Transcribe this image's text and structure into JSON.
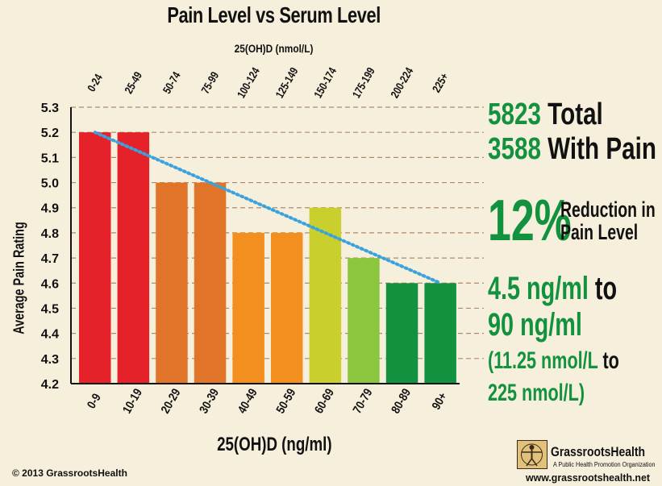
{
  "chart_data": {
    "type": "bar",
    "title": "Pain Level vs Serum Level",
    "top_axis_label": "25(OH)D (nmol/L)",
    "top_categories": [
      "0-24",
      "25-49",
      "50-74",
      "75-99",
      "100-124",
      "125-149",
      "150-174",
      "175-199",
      "200-224",
      "225+"
    ],
    "xlabel": "25(OH)D (ng/ml)",
    "ylabel": "Average Pain Rating",
    "categories": [
      "0-9",
      "10-19",
      "20-29",
      "30-39",
      "40-49",
      "50-59",
      "60-69",
      "70-79",
      "80-89",
      "90+"
    ],
    "values": [
      5.2,
      5.2,
      5.0,
      5.0,
      4.8,
      4.8,
      4.9,
      4.7,
      4.6,
      4.6
    ],
    "bar_colors": [
      "#e5212a",
      "#e5212a",
      "#e0752a",
      "#e0752a",
      "#f28f1f",
      "#f28f1f",
      "#c9cf2d",
      "#8cc63f",
      "#12923f",
      "#12923f"
    ],
    "ylim": [
      4.2,
      5.3
    ],
    "yticks": [
      "4.2",
      "4.3",
      "4.4",
      "4.5",
      "4.6",
      "4.7",
      "4.8",
      "4.9",
      "5.0",
      "5.1",
      "5.2",
      "5.3"
    ],
    "grid": true,
    "trendline": {
      "from_value": 5.2,
      "to_value": 4.6,
      "color": "#3aa2dc",
      "style": "dotted"
    }
  },
  "stats": {
    "total_number": "5823",
    "total_label": "Total",
    "pain_number": "3588",
    "pain_label": "With Pain",
    "reduction_number": "12",
    "reduction_symbol": "%",
    "reduction_line1": "Reduction in",
    "reduction_line2": "Pain Level",
    "range_from": "4.5 ng/ml",
    "range_to_word": "to",
    "range_to": "90 ng/ml",
    "range_nmol_from": "(11.25 nmol/L",
    "range_nmol_to_word": "to",
    "range_nmol_to": "225 nmol/L)"
  },
  "footer": {
    "copyright": "© 2013 GrassrootsHealth",
    "brand_name": "GrassrootsHealth",
    "brand_tagline": "A Public Health Promotion Organization",
    "website": "www.grassrootshealth.net"
  },
  "colors": {
    "background": "#f6efdc",
    "accent_green": "#12923f",
    "grid": "#b08a6a"
  }
}
